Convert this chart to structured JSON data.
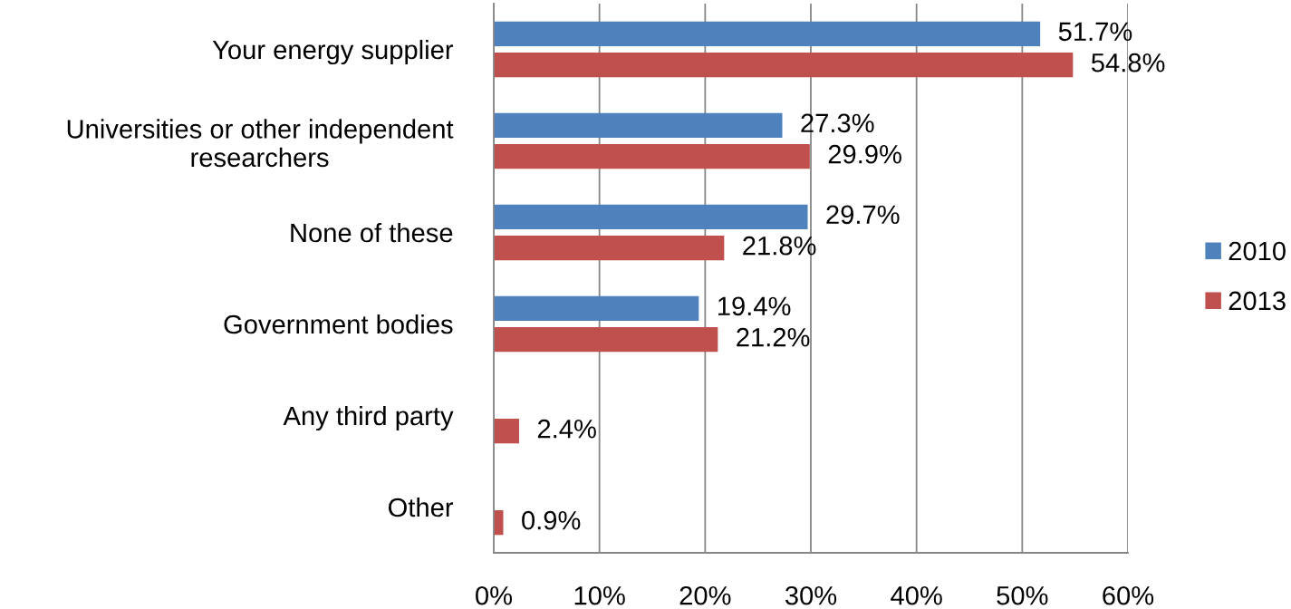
{
  "chart_data": {
    "type": "bar",
    "orientation": "horizontal",
    "categories": [
      "Your energy supplier",
      "Universities or other independent\nresearchers",
      "None of these",
      "Government bodies",
      "Any third party",
      "Other"
    ],
    "series": [
      {
        "name": "2010",
        "color": "#4f81bd",
        "values": [
          51.7,
          27.3,
          29.7,
          19.4,
          null,
          null
        ],
        "value_labels": [
          "51.7%",
          "27.3%",
          "29.7%",
          "19.4%",
          null,
          null
        ]
      },
      {
        "name": "2013",
        "color": "#c0504d",
        "values": [
          54.8,
          29.9,
          21.8,
          21.2,
          2.4,
          0.9
        ],
        "value_labels": [
          "54.8%",
          "29.9%",
          "21.8%",
          "21.2%",
          "2.4%",
          "0.9%"
        ]
      }
    ],
    "xlim": [
      0,
      60
    ],
    "xticks": [
      {
        "value": 0,
        "label": "0%"
      },
      {
        "value": 10,
        "label": "10%"
      },
      {
        "value": 20,
        "label": "20%"
      },
      {
        "value": 30,
        "label": "30%"
      },
      {
        "value": 40,
        "label": "40%"
      },
      {
        "value": 50,
        "label": "50%"
      },
      {
        "value": 60,
        "label": "60%"
      }
    ],
    "grid": "x",
    "legend": "right"
  }
}
